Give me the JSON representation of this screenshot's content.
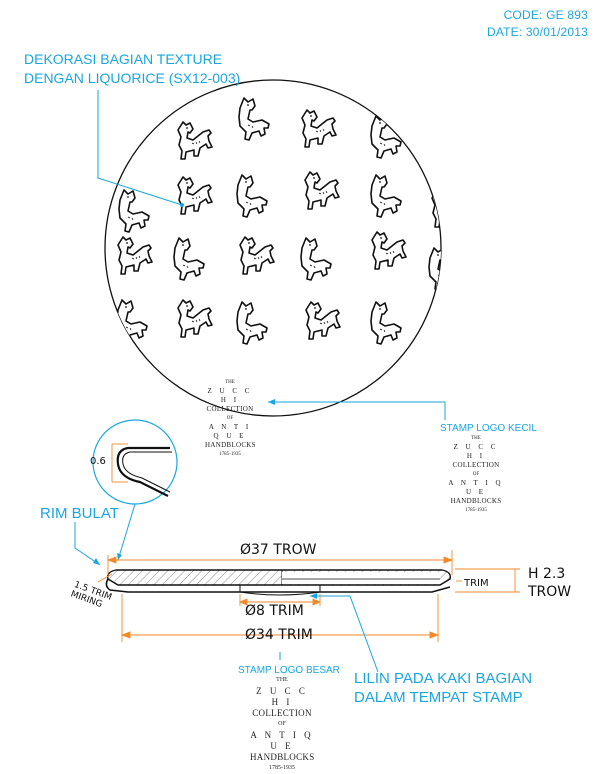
{
  "header": {
    "code": "CODE: GE 893",
    "date": "DATE: 30/01/2013"
  },
  "labels": {
    "decoration_line1": "DEKORASI BAGIAN TEXTURE",
    "decoration_line2": "DENGAN LIQUORICE (SX12-003)",
    "stamp_small": "STAMP LOGO KECIL",
    "stamp_large": "STAMP LOGO BESAR",
    "rim": "RIM BULAT",
    "wax_line1": "LILIN PADA KAKI BAGIAN",
    "wax_line2": "DALAM TEMPAT STAMP"
  },
  "stamp_logo": {
    "the": "THE",
    "zucchi": "Z U C C H I",
    "collection": "COLLECTION",
    "of": "OF",
    "antique": "A N T I Q U E",
    "handblocks": "HANDBLOCKS",
    "years": "1785-1935"
  },
  "dimensions": {
    "rim_thickness": "0.6",
    "diameter_trow": "Ø37 TROW",
    "diameter_8": "Ø8 TRIM",
    "diameter_34": "Ø34 TRIM",
    "height_line1": "H 2.3",
    "height_line2": "TROW",
    "trim_side": "TRIM",
    "rim_trim_line1": "1.5 TRIM",
    "rim_trim_line2": "MIRING"
  },
  "colors": {
    "accent": "#19a6df",
    "dimension": "#f08a2c",
    "line": "#111111"
  }
}
